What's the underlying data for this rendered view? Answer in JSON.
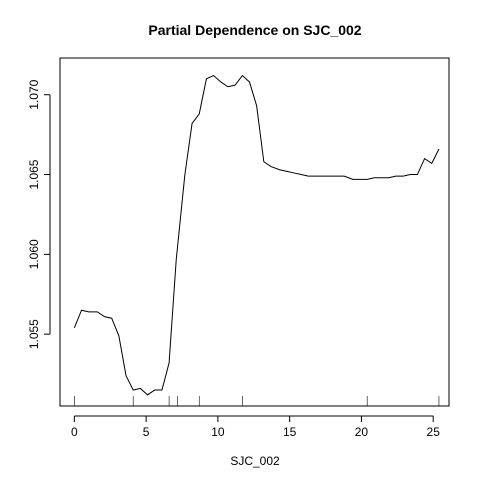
{
  "chart_data": {
    "type": "line",
    "title": "Partial Dependence on SJC_002",
    "xlabel": "SJC_002",
    "ylabel": "",
    "xlim": [
      -1.0,
      26.1
    ],
    "ylim": [
      1.0505,
      1.0723
    ],
    "x_ticks": [
      0,
      5,
      10,
      15,
      20,
      25
    ],
    "x_tick_labels": [
      "0",
      "5",
      "10",
      "15",
      "20",
      "25"
    ],
    "y_ticks": [
      1.055,
      1.06,
      1.065,
      1.07
    ],
    "y_tick_labels": [
      "1.055",
      "1.060",
      "1.065",
      "1.070"
    ],
    "grid": false,
    "legend": "none",
    "series": [
      {
        "x": [
          0.0,
          0.5,
          1.0,
          1.6,
          2.1,
          2.6,
          3.1,
          3.6,
          4.1,
          4.6,
          5.1,
          5.6,
          6.1,
          6.6,
          7.1,
          7.7,
          8.2,
          8.7,
          9.2,
          9.7,
          10.2,
          10.7,
          11.2,
          11.7,
          12.2,
          12.7,
          13.2,
          13.7,
          14.3,
          14.8,
          15.3,
          15.8,
          16.3,
          16.8,
          17.3,
          17.8,
          18.3,
          18.8,
          19.4,
          19.9,
          20.4,
          20.9,
          21.4,
          21.9,
          22.4,
          22.9,
          23.4,
          23.9,
          24.4,
          24.9,
          25.4
        ],
        "y": [
          1.0554,
          1.0565,
          1.0564,
          1.0564,
          1.0561,
          1.056,
          1.0549,
          1.0524,
          1.0515,
          1.0516,
          1.0512,
          1.0515,
          1.0515,
          1.0532,
          1.0597,
          1.065,
          1.0682,
          1.0688,
          1.071,
          1.0712,
          1.0708,
          1.0705,
          1.0706,
          1.0712,
          1.0708,
          1.0693,
          1.0658,
          1.0655,
          1.0653,
          1.0652,
          1.0651,
          1.065,
          1.0649,
          1.0649,
          1.0649,
          1.0649,
          1.0649,
          1.0649,
          1.0647,
          1.0647,
          1.0647,
          1.0648,
          1.0648,
          1.0648,
          1.0649,
          1.0649,
          1.065,
          1.065,
          1.066,
          1.0657,
          1.0666
        ]
      }
    ],
    "rug_x": [
      0.0,
      4.1,
      6.6,
      7.2,
      8.7,
      11.7,
      20.4,
      25.4
    ]
  }
}
